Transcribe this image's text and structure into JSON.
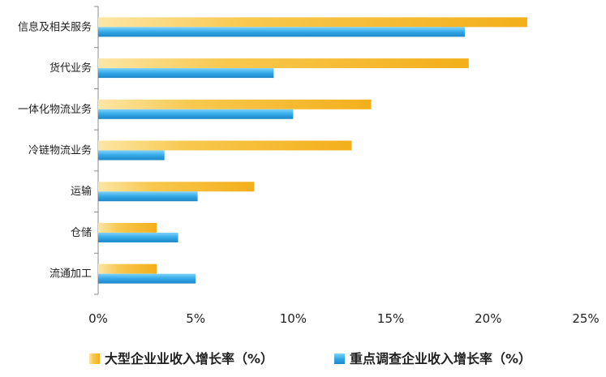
{
  "chart_data": {
    "type": "bar",
    "orientation": "horizontal",
    "categories": [
      "信息及相关服务",
      "货代业务",
      "一体化物流业务",
      "冷链物流业务",
      "运输",
      "仓储",
      "流通加工"
    ],
    "series": [
      {
        "name": "大型企业业收入增长率（%）",
        "values": [
          22,
          19,
          14,
          13,
          8,
          3,
          3
        ],
        "color": "#F5B82E"
      },
      {
        "name": "重点调查企业收入增长率（%）",
        "values": [
          18.8,
          9,
          10,
          3.4,
          5.1,
          4.1,
          5
        ],
        "color": "#2FA6E6"
      }
    ],
    "xlim": [
      0,
      25
    ],
    "x_ticks": [
      "0%",
      "5%",
      "10%",
      "15%",
      "20%",
      "25%"
    ],
    "x_tick_values": [
      0,
      5,
      10,
      15,
      20,
      25
    ],
    "grid": false,
    "legend_position": "bottom",
    "title": "",
    "xlabel": "",
    "ylabel": ""
  }
}
